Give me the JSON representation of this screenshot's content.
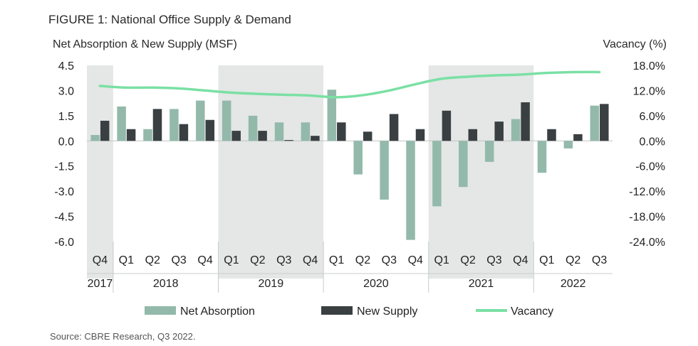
{
  "title": "FIGURE 1:  National Office Supply & Demand",
  "source": "Source: CBRE Research, Q3 2022.",
  "colors": {
    "net_absorption": "#93b9ab",
    "new_supply": "#3a3f42",
    "vacancy": "#7ae0a4",
    "band": "#e4e7e6",
    "axis_text": "#222222"
  },
  "chart_data": {
    "type": "bar",
    "title": "FIGURE 1:  National Office Supply & Demand",
    "ylabel": "Net Absorption & New Supply (MSF)",
    "y2label": "Vacancy (%)",
    "ylim": [
      -6.0,
      4.5
    ],
    "yticks": [
      "4.5",
      "3.0",
      "1.5",
      "0.0",
      "-1.5",
      "-3.0",
      "-4.5",
      "-6.0"
    ],
    "yticks_values": [
      4.5,
      3.0,
      1.5,
      0.0,
      -1.5,
      -3.0,
      -4.5,
      -6.0
    ],
    "y2lim": [
      -24.0,
      18.0
    ],
    "y2ticks": [
      "18.0%",
      "12.0%",
      "6.0%",
      "0.0%",
      "-6.0%",
      "-12.0%",
      "-18.0%",
      "-24.0%"
    ],
    "categories": [
      "Q4",
      "Q1",
      "Q2",
      "Q3",
      "Q4",
      "Q1",
      "Q2",
      "Q3",
      "Q4",
      "Q1",
      "Q2",
      "Q3",
      "Q4",
      "Q1",
      "Q2",
      "Q3",
      "Q4",
      "Q1",
      "Q2",
      "Q3"
    ],
    "years": [
      {
        "label": "2017",
        "start": 0,
        "count": 1,
        "shaded": true
      },
      {
        "label": "2018",
        "start": 1,
        "count": 4,
        "shaded": false
      },
      {
        "label": "2019",
        "start": 5,
        "count": 4,
        "shaded": true
      },
      {
        "label": "2020",
        "start": 9,
        "count": 4,
        "shaded": false
      },
      {
        "label": "2021",
        "start": 13,
        "count": 4,
        "shaded": true
      },
      {
        "label": "2022",
        "start": 17,
        "count": 3,
        "shaded": false
      }
    ],
    "series": [
      {
        "name": "Net Absorption",
        "type": "bar",
        "values": [
          0.35,
          2.05,
          0.7,
          1.9,
          2.4,
          2.4,
          1.5,
          1.1,
          1.1,
          3.05,
          -2.0,
          -3.5,
          -5.9,
          -3.9,
          -2.75,
          -1.25,
          1.3,
          -1.9,
          -0.45,
          2.1
        ]
      },
      {
        "name": "New Supply",
        "type": "bar",
        "values": [
          1.2,
          0.7,
          1.9,
          1.0,
          1.25,
          0.6,
          0.6,
          0.05,
          0.3,
          1.1,
          0.55,
          1.6,
          0.7,
          1.8,
          0.7,
          1.15,
          2.3,
          0.7,
          0.4,
          2.2
        ]
      },
      {
        "name": "Vacancy",
        "type": "line",
        "axis": "right",
        "values": [
          13.1,
          12.7,
          12.7,
          12.5,
          12.0,
          11.5,
          11.2,
          11.0,
          10.8,
          10.4,
          10.9,
          12.0,
          13.5,
          14.8,
          15.3,
          15.6,
          15.8,
          16.2,
          16.4,
          16.4
        ]
      }
    ],
    "legend": [
      "Net Absorption",
      "New Supply",
      "Vacancy"
    ],
    "legend_position": "bottom"
  }
}
